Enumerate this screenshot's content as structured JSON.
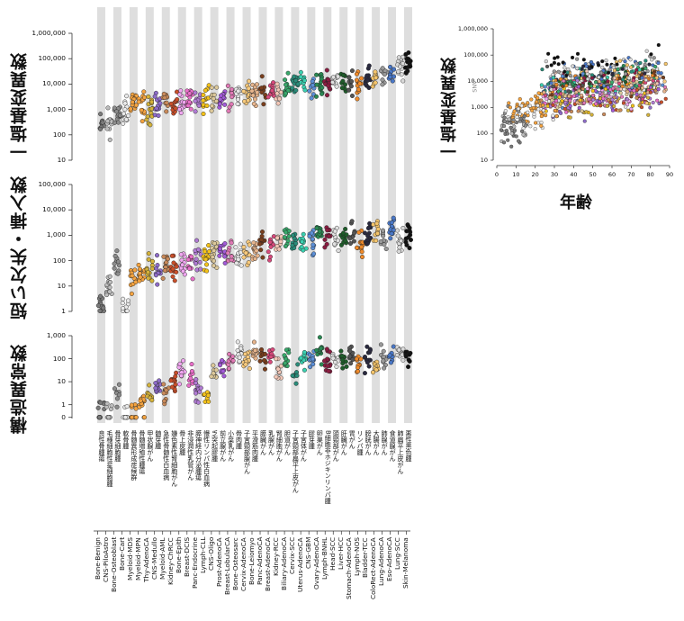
{
  "panels": {
    "snv_label": "一塩基変異数",
    "indel_label": "短い欠失・挿入数",
    "sv_label": "構造異常数",
    "age_ylabel": "一塩基変異数",
    "age_xlabel": "年齢",
    "age_partial_text": "SNV"
  },
  "chart_data": [
    {
      "type": "scatter",
      "title": "",
      "ylabel": "一塩基変異数",
      "scale": "log",
      "ylim": [
        10,
        1000000
      ],
      "yticks": [
        "10",
        "100",
        "1,000",
        "10,000",
        "100,000",
        "1,000,000"
      ],
      "categories": [
        "Bone-Benign",
        "CNS-PiloAstro",
        "Bone-Osteoblast",
        "Bone-Cart",
        "Myeloid-MDS",
        "Myeloid-MPN",
        "Thy-AdenoCA",
        "CNS-Medullo",
        "Myeloid-AML",
        "Kidney-ChRCC",
        "Bone-Epith",
        "Breast-DCIS",
        "Panc-Endocrine",
        "Lymph-CLL",
        "CNS-Oligo",
        "Prost-AdenoCA",
        "Breast-LobularCA",
        "Bone-Osteosarc",
        "Cervix-AdenoCA",
        "Bone-Leiomyo",
        "Panc-AdenoCA",
        "Breast-AdenoCA",
        "Kidney-RCC",
        "Biliary-AdenoCA",
        "Cervix-SCC",
        "Uterus-AdenoCA",
        "CNS-GBM",
        "Ovary-AdenoCA",
        "Lymph-BNHL",
        "Head-SCC",
        "Liver-HCC",
        "Stomach-AdenoCA",
        "Lymph-NOS",
        "Bladder-TCC",
        "ColoRect-AdenoCA",
        "Lung-AdenoCA",
        "Eso-AdenoCA",
        "Lung-SCC",
        "Skin-Melanoma"
      ],
      "categories_ja": [
        "良性骨腫瘍",
        "毛様細胞性星細胞腫",
        "骨芽細胞腫",
        "軟骨腫",
        "骨髄異形成症候群",
        "骨髄増殖性腫瘍",
        "甲状腺がん",
        "髄芽腫",
        "急性骨髄性白血病",
        "嫌色素性腎細胞がん",
        "骨上皮腫",
        "非浸潤性乳管がん",
        "膵神経内分泌腫瘍",
        "慢性リンパ性白血病",
        "乏突起膠腫",
        "前立腺がん",
        "小葉乳がん",
        "骨肉腫",
        "子宮頸部腺がん",
        "平滑筋肉腫",
        "膵臓がん",
        "乳腺がん",
        "腎細胞がん",
        "胆道がん",
        "子宮頸部扁平上皮がん",
        "子宮体がん",
        "膠芽腫",
        "卵巣がん",
        "B細胞非ホジキンリンパ腫",
        "頭頸部がん",
        "肝臓がん",
        "胃がん",
        "リンパ腫",
        "膀胱がん",
        "大腸がん",
        "肺腺がん",
        "食道腺がん",
        "肺扁平上皮がん",
        "悪性黒色腫"
      ],
      "medians": [
        250,
        300,
        600,
        900,
        1500,
        1500,
        1000,
        1500,
        1800,
        1700,
        2000,
        2500,
        2000,
        2500,
        2500,
        2300,
        3000,
        3500,
        4000,
        4000,
        5500,
        5000,
        6000,
        7000,
        9000,
        9000,
        7000,
        10000,
        10000,
        12000,
        11000,
        12000,
        9000,
        15000,
        16000,
        25000,
        20000,
        40000,
        50000
      ],
      "colors": [
        "#7a7a7a",
        "#bdbdbd",
        "#8c8c8c",
        "#e9e9e9",
        "#f4a340",
        "#f4a340",
        "#d4b23a",
        "#8e6cc9",
        "#c98a5a",
        "#c94f2a",
        "#f0a6f0",
        "#e86fc8",
        "#b07bd3",
        "#f4c21a",
        "#dcc89a",
        "#a35bd8",
        "#e07ab5",
        "#e6e6e6",
        "#f7c97b",
        "#e6b48c",
        "#7a3f1d",
        "#d84a7c",
        "#f2c6b6",
        "#39a86b",
        "#2a8c7a",
        "#3ad0b0",
        "#5c8fd6",
        "#2b8a54",
        "#8a1c40",
        "#e0e0e0",
        "#1e5c2a",
        "#555555",
        "#ef8a2a",
        "#2a2a40",
        "#f4c46a",
        "#9a9a9a",
        "#4a78c8",
        "#d8d8d8",
        "#111111"
      ]
    },
    {
      "type": "scatter",
      "ylabel": "短い欠失・挿入数",
      "scale": "log",
      "ylim": [
        1,
        100000
      ],
      "yticks": [
        "1",
        "10",
        "100",
        "1,000",
        "10,000",
        "100,000"
      ],
      "medians": [
        2,
        10,
        60,
        1,
        20,
        30,
        40,
        50,
        60,
        70,
        80,
        100,
        120,
        130,
        150,
        180,
        200,
        150,
        200,
        250,
        500,
        400,
        500,
        600,
        500,
        800,
        600,
        1000,
        700,
        800,
        900,
        1000,
        500,
        1000,
        1500,
        800,
        1500,
        800,
        1000
      ]
    },
    {
      "type": "scatter",
      "ylabel": "構造異常数",
      "scale": "log",
      "ylim": [
        0,
        1000
      ],
      "yticks": [
        "0",
        "1",
        "10",
        "100",
        "1,000"
      ],
      "medians": [
        0.5,
        0.5,
        3,
        0.5,
        0.5,
        1,
        2,
        5,
        3,
        10,
        30,
        20,
        4,
        2,
        20,
        40,
        80,
        200,
        100,
        200,
        100,
        150,
        40,
        100,
        30,
        100,
        80,
        250,
        80,
        120,
        100,
        150,
        60,
        100,
        50,
        100,
        150,
        200,
        100
      ]
    },
    {
      "type": "scatter",
      "ylabel": "一塩基変異数",
      "xlabel": "年齢",
      "scale_y": "log",
      "xlim": [
        0,
        90
      ],
      "ylim": [
        10,
        1000000
      ],
      "xticks": [
        "0",
        "10",
        "20",
        "30",
        "40",
        "50",
        "60",
        "70",
        "80",
        "90"
      ],
      "yticks": [
        "10",
        "100",
        "1,000",
        "10,000",
        "100,000",
        "1,000,000"
      ],
      "trend": "mutations increase with age; young (0-15) cluster near 100-1,000; adults 40-85 cluster 1,000-100,000 with outliers to 1,000,000"
    }
  ]
}
